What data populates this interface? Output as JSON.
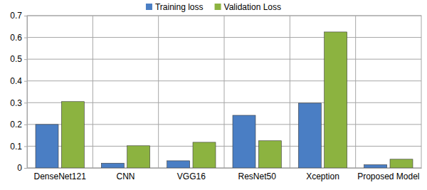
{
  "chart_data": {
    "type": "bar",
    "categories": [
      "DenseNet121",
      "CNN",
      "VGG16",
      "ResNet50",
      "Xception",
      "Proposed Model"
    ],
    "series": [
      {
        "name": "Training loss",
        "color": "#4a7ec4",
        "values": [
          0.2,
          0.022,
          0.033,
          0.242,
          0.298,
          0.015
        ]
      },
      {
        "name": "Validation Loss",
        "color": "#8cb340",
        "values": [
          0.305,
          0.102,
          0.118,
          0.125,
          0.625,
          0.04
        ]
      }
    ],
    "ylim": [
      0,
      0.7
    ],
    "yticks": [
      0,
      0.1,
      0.2,
      0.3,
      0.4,
      0.5,
      0.6,
      0.7
    ],
    "grid": true,
    "legend": "top"
  }
}
